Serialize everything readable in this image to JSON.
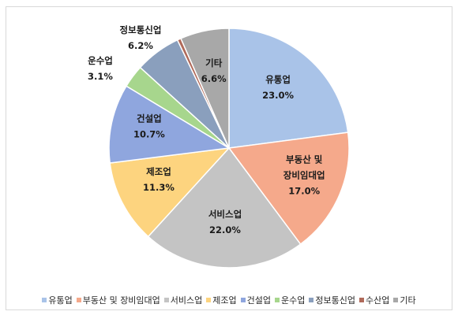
{
  "chart_data": {
    "type": "pie",
    "categories": [
      "유통업",
      "부동산 및 장비임대업",
      "서비스업",
      "제조업",
      "건설업",
      "운수업",
      "정보통신업",
      "수산업",
      "기타"
    ],
    "values": [
      23.0,
      17.0,
      22.0,
      11.3,
      10.7,
      3.1,
      6.2,
      0.5,
      6.6
    ],
    "data_labels": [
      "23.0%",
      "17.0%",
      "22.0%",
      "11.3%",
      "10.7%",
      "3.1%",
      "6.2%",
      "",
      "6.6%"
    ],
    "colors": [
      "#a9c3e8",
      "#f5a98b",
      "#c4c4c4",
      "#fdd47f",
      "#8fa6de",
      "#a7d68d",
      "#8a9fbd",
      "#b06a5a",
      "#a8a8a8"
    ],
    "title": "",
    "legend_position": "bottom"
  }
}
